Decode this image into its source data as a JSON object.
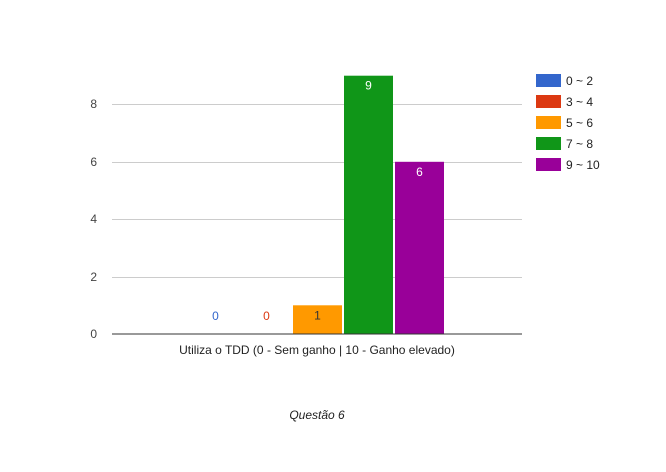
{
  "chart_data": {
    "type": "bar",
    "title": "Questão 6",
    "xlabel": "Utiliza o TDD (0 - Sem ganho | 10 - Ganho elevado)",
    "ylabel": "",
    "ylim": [
      0,
      10
    ],
    "yticks": [
      0,
      2,
      4,
      6,
      8
    ],
    "grid": true,
    "legend_position": "right",
    "categories": [
      "Utiliza o TDD (0 - Sem ganho | 10 - Ganho elevado)"
    ],
    "series": [
      {
        "name": "0 ~ 2",
        "values": [
          0
        ],
        "color": "#3366cc"
      },
      {
        "name": "3 ~ 4",
        "values": [
          0
        ],
        "color": "#dc3912"
      },
      {
        "name": "5 ~ 6",
        "values": [
          1
        ],
        "color": "#ff9900"
      },
      {
        "name": "7 ~ 8",
        "values": [
          9
        ],
        "color": "#109618"
      },
      {
        "name": "9 ~ 10",
        "values": [
          6
        ],
        "color": "#990099"
      }
    ]
  }
}
